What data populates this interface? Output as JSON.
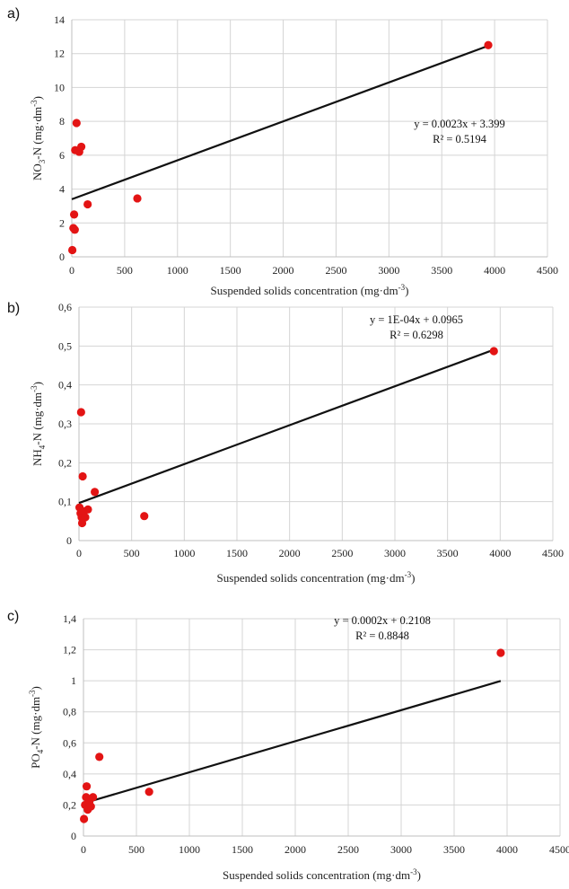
{
  "chart_data": [
    {
      "type": "scatter",
      "panel_label": "a)",
      "ylabel_main": "NO",
      "ylabel_sub": "3",
      "ylabel_rest": "-N (mg·dm",
      "ylabel_sup": "-3",
      "ylabel_end": ")",
      "xlabel_main": "Suspended solids concentration (mg·dm",
      "xlabel_sup": "-3",
      "xlabel_end": ")",
      "xlim": [
        0,
        4500
      ],
      "ylim": [
        0,
        14
      ],
      "x_ticks": [
        0,
        500,
        1000,
        1500,
        2000,
        2500,
        3000,
        3500,
        4000,
        4500
      ],
      "x_tick_labels": [
        "0",
        "500",
        "1000",
        "1500",
        "2000",
        "2500",
        "3000",
        "3500",
        "4000",
        "4500"
      ],
      "y_ticks": [
        0,
        2,
        4,
        6,
        8,
        10,
        12,
        14
      ],
      "y_tick_labels": [
        "0",
        "2",
        "4",
        "6",
        "8",
        "10",
        "12",
        "14"
      ],
      "points": [
        {
          "x": 5,
          "y": 0.4
        },
        {
          "x": 15,
          "y": 1.7
        },
        {
          "x": 22,
          "y": 2.5
        },
        {
          "x": 28,
          "y": 1.6
        },
        {
          "x": 32,
          "y": 6.3
        },
        {
          "x": 45,
          "y": 7.9
        },
        {
          "x": 70,
          "y": 6.2
        },
        {
          "x": 90,
          "y": 6.5
        },
        {
          "x": 150,
          "y": 3.1
        },
        {
          "x": 620,
          "y": 3.45
        },
        {
          "x": 3940,
          "y": 12.5
        }
      ],
      "trendline": {
        "slope": 0.0023,
        "intercept": 3.399,
        "x_range": [
          0,
          3940
        ]
      },
      "equation": "y = 0.0023x + 3.399",
      "r_squared": "R² = 0.5194",
      "grid": true,
      "point_color": "#e31414"
    },
    {
      "type": "scatter",
      "panel_label": "b)",
      "ylabel_main": "NH",
      "ylabel_sub": "4",
      "ylabel_rest": "-N (mg·dm",
      "ylabel_sup": "-3",
      "ylabel_end": ")",
      "xlabel_main": "Suspended solids concentration (mg·dm",
      "xlabel_sup": "-3",
      "xlabel_end": ")",
      "xlim": [
        0,
        4500
      ],
      "ylim": [
        0,
        0.6
      ],
      "x_ticks": [
        0,
        500,
        1000,
        1500,
        2000,
        2500,
        3000,
        3500,
        4000,
        4500
      ],
      "x_tick_labels": [
        "0",
        "500",
        "1000",
        "1500",
        "2000",
        "2500",
        "3000",
        "3500",
        "4000",
        "4500"
      ],
      "y_ticks": [
        0,
        0.1,
        0.2,
        0.3,
        0.4,
        0.5,
        0.6
      ],
      "y_tick_labels": [
        "0",
        "0,1",
        "0,2",
        "0,3",
        "0,4",
        "0,5",
        "0,6"
      ],
      "points": [
        {
          "x": 5,
          "y": 0.085
        },
        {
          "x": 15,
          "y": 0.07
        },
        {
          "x": 20,
          "y": 0.33
        },
        {
          "x": 25,
          "y": 0.06
        },
        {
          "x": 30,
          "y": 0.045
        },
        {
          "x": 35,
          "y": 0.165
        },
        {
          "x": 45,
          "y": 0.075
        },
        {
          "x": 60,
          "y": 0.06
        },
        {
          "x": 85,
          "y": 0.08
        },
        {
          "x": 150,
          "y": 0.125
        },
        {
          "x": 620,
          "y": 0.063
        },
        {
          "x": 3940,
          "y": 0.487
        }
      ],
      "trendline": {
        "slope": 0.0001,
        "intercept": 0.0965,
        "x_range": [
          0,
          3940
        ]
      },
      "equation": "y = 1E-04x + 0.0965",
      "r_squared": "R² = 0.6298",
      "grid": true,
      "point_color": "#e31414"
    },
    {
      "type": "scatter",
      "panel_label": "c)",
      "ylabel_main": "PO",
      "ylabel_sub": "4",
      "ylabel_rest": "-N (mg·dm",
      "ylabel_sup": "-3",
      "ylabel_end": ")",
      "xlabel_main": "Suspended solids concentration (mg·dm",
      "xlabel_sup": "-3",
      "xlabel_end": ")",
      "xlim": [
        0,
        4500
      ],
      "ylim": [
        0,
        1.4
      ],
      "x_ticks": [
        0,
        500,
        1000,
        1500,
        2000,
        2500,
        3000,
        3500,
        4000,
        4500
      ],
      "x_tick_labels": [
        "0",
        "500",
        "1000",
        "1500",
        "2000",
        "2500",
        "3000",
        "3500",
        "4000",
        "4500"
      ],
      "y_ticks": [
        0,
        0.2,
        0.4,
        0.6,
        0.8,
        1,
        1.2,
        1.4
      ],
      "y_tick_labels": [
        "0",
        "0,2",
        "0,4",
        "0,6",
        "0,8",
        "1",
        "1,2",
        "1,4"
      ],
      "points": [
        {
          "x": 5,
          "y": 0.11
        },
        {
          "x": 15,
          "y": 0.2
        },
        {
          "x": 25,
          "y": 0.25
        },
        {
          "x": 30,
          "y": 0.32
        },
        {
          "x": 40,
          "y": 0.17
        },
        {
          "x": 55,
          "y": 0.22
        },
        {
          "x": 70,
          "y": 0.19
        },
        {
          "x": 90,
          "y": 0.25
        },
        {
          "x": 150,
          "y": 0.51
        },
        {
          "x": 620,
          "y": 0.285
        },
        {
          "x": 3940,
          "y": 1.18
        }
      ],
      "trendline": {
        "slope": 0.0002,
        "intercept": 0.2108,
        "x_range": [
          0,
          3940
        ]
      },
      "equation": "y = 0.0002x + 0.2108",
      "r_squared": "R² = 0.8848",
      "grid": true,
      "point_color": "#e31414"
    }
  ]
}
